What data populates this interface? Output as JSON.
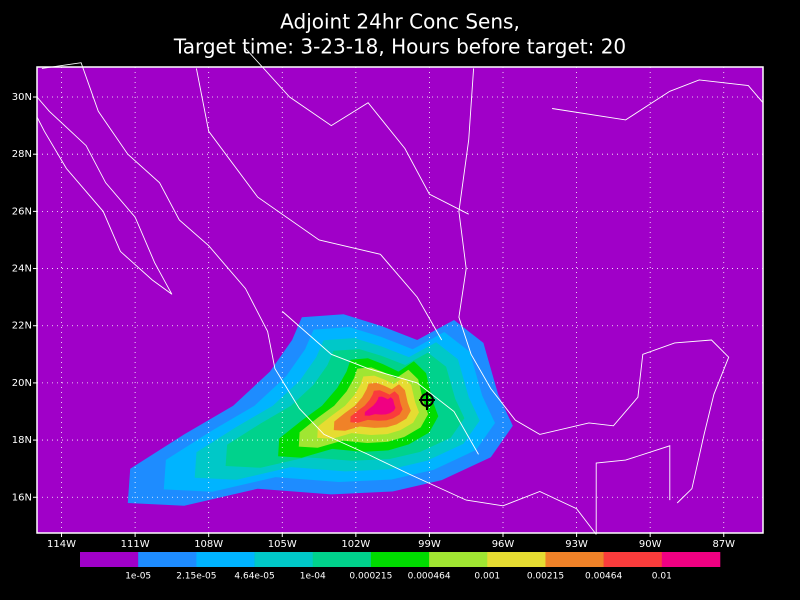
{
  "title": [
    "Adjoint 24hr Conc Sens,",
    "Target time: 3-23-18, Hours before target: 20"
  ],
  "map": {
    "lonlim": [
      -115,
      -85.4
    ],
    "latlim": [
      14.75,
      31.05
    ],
    "lonticks": [
      {
        "value": -114,
        "label": "114W"
      },
      {
        "value": -111,
        "label": "111W"
      },
      {
        "value": -108,
        "label": "108W"
      },
      {
        "value": -105,
        "label": "105W"
      },
      {
        "value": -102,
        "label": "102W"
      },
      {
        "value": -99,
        "label": "99W"
      },
      {
        "value": -96,
        "label": "96W"
      },
      {
        "value": -93,
        "label": "93W"
      },
      {
        "value": -90,
        "label": "90W"
      },
      {
        "value": -87,
        "label": "87W"
      }
    ],
    "latticks": [
      {
        "value": 16,
        "label": "16N"
      },
      {
        "value": 18,
        "label": "18N"
      },
      {
        "value": 20,
        "label": "20N"
      },
      {
        "value": 22,
        "label": "22N"
      },
      {
        "value": 24,
        "label": "24N"
      },
      {
        "value": 26,
        "label": "26N"
      },
      {
        "value": 28,
        "label": "28N"
      },
      {
        "value": 30,
        "label": "30N"
      }
    ]
  },
  "colorbar": {
    "colors": [
      "#a000c8",
      "#1e8cff",
      "#00b4ff",
      "#00c8c8",
      "#00d28c",
      "#00dc00",
      "#a0e632",
      "#e6dc32",
      "#f08228",
      "#fa3c3c",
      "#f00082"
    ],
    "levels": [
      {
        "value": 1e-05,
        "label": "1e-05"
      },
      {
        "value": 2.15e-05,
        "label": "2.15e-05"
      },
      {
        "value": 4.64e-05,
        "label": "4.64e-05"
      },
      {
        "value": 0.0001,
        "label": "1e-04"
      },
      0.000215,
      0.000464,
      0.001,
      0.00215,
      0.00464,
      0.01
    ]
  }
}
